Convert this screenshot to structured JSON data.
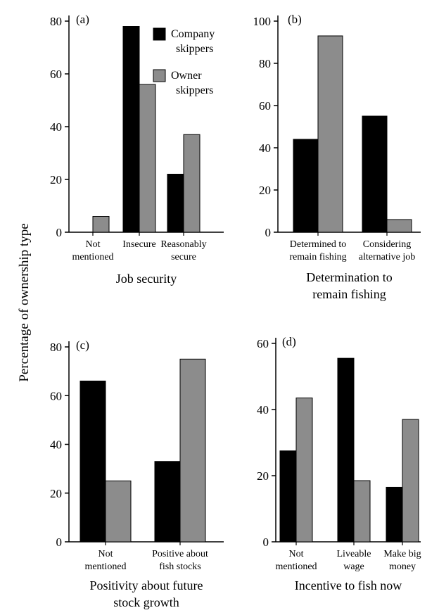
{
  "figure": {
    "ylabel": "Percentage of ownership type",
    "legend": [
      {
        "name": "Company skippers",
        "color": "#000000"
      },
      {
        "name": "Owner skippers",
        "color": "#8c8c8c"
      }
    ]
  },
  "chart_data": [
    {
      "type": "bar",
      "panel": "(a)",
      "xlabel": "Job security",
      "ylim": [
        0,
        80
      ],
      "yticks": [
        0,
        20,
        40,
        60,
        80
      ],
      "categories": [
        "Not mentioned",
        "Insecure",
        "Reasonably secure"
      ],
      "category_lines": [
        [
          "Not",
          "mentioned"
        ],
        [
          "Insecure"
        ],
        [
          "Reasonably",
          "secure"
        ]
      ],
      "series": [
        {
          "name": "Company skippers",
          "values": [
            0,
            78,
            22
          ]
        },
        {
          "name": "Owner skippers",
          "values": [
            6,
            56,
            37
          ]
        }
      ],
      "legend_position": "top-right"
    },
    {
      "type": "bar",
      "panel": "(b)",
      "xlabel_lines": [
        "Determination to",
        "remain fishing"
      ],
      "ylim": [
        0,
        100
      ],
      "yticks": [
        0,
        20,
        40,
        60,
        80,
        100
      ],
      "categories": [
        "Determined to remain fishing",
        "Considering alternative job"
      ],
      "category_lines": [
        [
          "Determined to",
          "remain fishing"
        ],
        [
          "Considering",
          "alternative job"
        ]
      ],
      "series": [
        {
          "name": "Company skippers",
          "values": [
            44,
            55
          ]
        },
        {
          "name": "Owner skippers",
          "values": [
            93,
            6
          ]
        }
      ]
    },
    {
      "type": "bar",
      "panel": "(c)",
      "xlabel_lines": [
        "Positivity about future",
        "stock growth"
      ],
      "ylim": [
        0,
        80
      ],
      "yticks": [
        0,
        20,
        40,
        60,
        80
      ],
      "categories": [
        "Not mentioned",
        "Positive about fish stocks"
      ],
      "category_lines": [
        [
          "Not",
          "mentioned"
        ],
        [
          "Positive about",
          "fish stocks"
        ]
      ],
      "series": [
        {
          "name": "Company skippers",
          "values": [
            66,
            33
          ]
        },
        {
          "name": "Owner skippers",
          "values": [
            25,
            75
          ]
        }
      ]
    },
    {
      "type": "bar",
      "panel": "(d)",
      "xlabel": "Incentive to fish now",
      "ylim": [
        0,
        60
      ],
      "yticks": [
        0,
        20,
        40,
        60
      ],
      "categories": [
        "Not mentioned",
        "Liveable wage",
        "Make big money"
      ],
      "category_lines": [
        [
          "Not",
          "mentioned"
        ],
        [
          "Liveable",
          "wage"
        ],
        [
          "Make big",
          "money"
        ]
      ],
      "series": [
        {
          "name": "Company skippers",
          "values": [
            27.5,
            55.5,
            16.5
          ]
        },
        {
          "name": "Owner skippers",
          "values": [
            43.5,
            18.5,
            37
          ]
        }
      ]
    }
  ]
}
